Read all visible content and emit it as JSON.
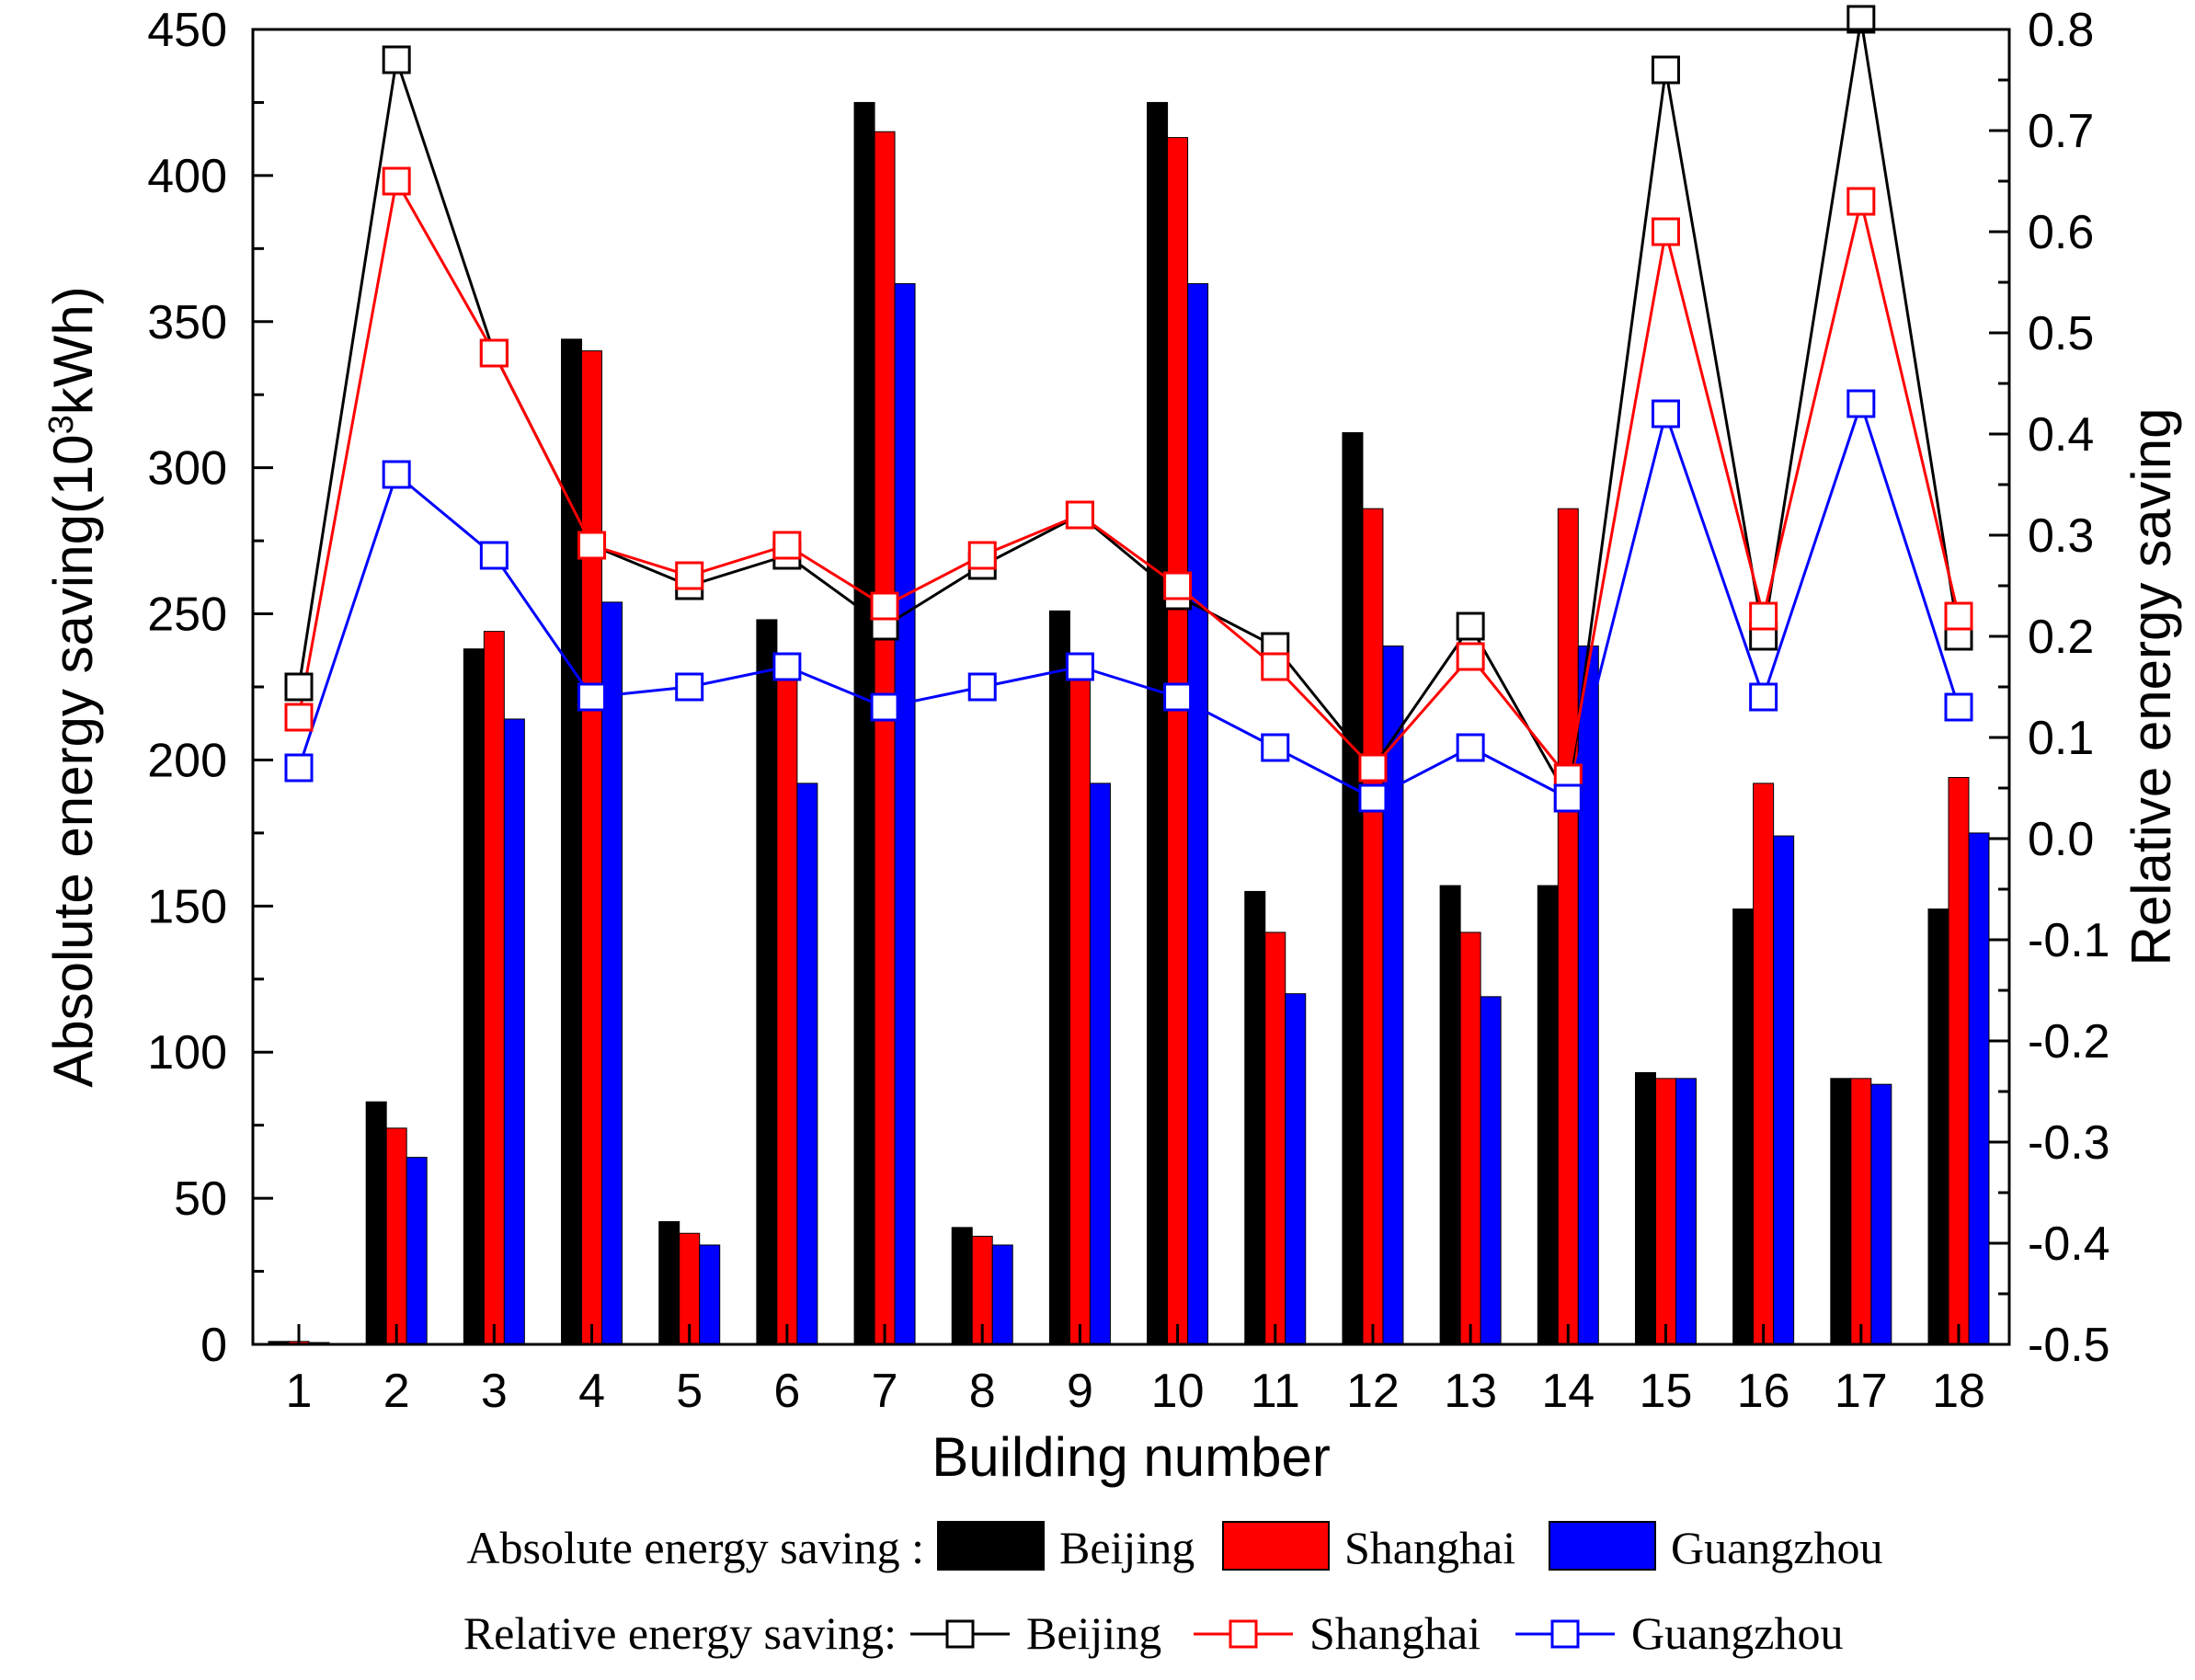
{
  "chart_data": {
    "type": "bar",
    "categories": [
      "1",
      "2",
      "3",
      "4",
      "5",
      "6",
      "7",
      "8",
      "9",
      "10",
      "11",
      "12",
      "13",
      "14",
      "15",
      "16",
      "17",
      "18"
    ],
    "xlabel": "Building number",
    "ylabel_left": "Absolute energy saving(10",
    "ylabel_left_sup": "3",
    "ylabel_left_end": "kWh)",
    "ylabel_right": "Relative energy saving",
    "ylim_left": [
      0,
      450
    ],
    "yticks_left": [
      0,
      50,
      100,
      150,
      200,
      250,
      300,
      350,
      400,
      450
    ],
    "ylim_right": [
      -0.5,
      0.8
    ],
    "yticks_right": [
      "-0.5",
      "-0.4",
      "-0.3",
      "-0.2",
      "-0.1",
      "0.0",
      "0.1",
      "0.2",
      "0.3",
      "0.4",
      "0.5",
      "0.6",
      "0.7",
      "0.8"
    ],
    "bar_series": [
      {
        "name": "Beijing",
        "color": "#000000",
        "values": [
          1,
          83,
          238,
          344,
          42,
          248,
          425,
          40,
          251,
          425,
          155,
          312,
          157,
          157,
          93,
          149,
          91,
          149
        ]
      },
      {
        "name": "Shanghai",
        "color": "#ff0000",
        "values": [
          1,
          74,
          244,
          340,
          38,
          228,
          415,
          37,
          231,
          413,
          141,
          286,
          141,
          286,
          91,
          192,
          91,
          194
        ]
      },
      {
        "name": "Guangzhou",
        "color": "#0000ff",
        "values": [
          0,
          64,
          214,
          254,
          34,
          192,
          363,
          34,
          192,
          363,
          120,
          239,
          119,
          239,
          91,
          174,
          89,
          175
        ]
      }
    ],
    "line_series": [
      {
        "name": "Beijing",
        "color": "#000000",
        "values": [
          0.15,
          0.77,
          0.48,
          0.29,
          0.25,
          0.28,
          0.21,
          0.27,
          0.32,
          0.24,
          0.19,
          0.07,
          0.21,
          0.04,
          0.76,
          0.2,
          0.81,
          0.2
        ]
      },
      {
        "name": "Shanghai",
        "color": "#ff0000",
        "values": [
          0.12,
          0.65,
          0.48,
          0.29,
          0.26,
          0.29,
          0.23,
          0.28,
          0.32,
          0.25,
          0.17,
          0.07,
          0.18,
          0.06,
          0.6,
          0.22,
          0.63,
          0.22
        ]
      },
      {
        "name": "Guangzhou",
        "color": "#0000ff",
        "values": [
          0.07,
          0.36,
          0.28,
          0.14,
          0.15,
          0.17,
          0.13,
          0.15,
          0.17,
          0.14,
          0.09,
          0.04,
          0.09,
          0.04,
          0.42,
          0.14,
          0.43,
          0.13
        ]
      }
    ],
    "legend": {
      "bars_label": "Absolute energy saving :",
      "lines_label": "Relative energy saving:",
      "entries": [
        "Beijing",
        "Shanghai",
        "Guangzhou"
      ],
      "placement": "bottom"
    },
    "grid": false
  }
}
